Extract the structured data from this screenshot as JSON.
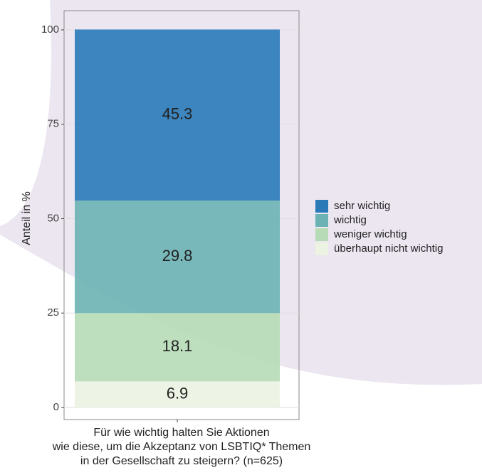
{
  "chart_data": {
    "type": "stacked-bar",
    "categories": [
      null
    ],
    "series": [
      {
        "name": "sehr wichtig",
        "color": "#2a7ab8",
        "values": [
          45.3
        ]
      },
      {
        "name": "wichtig",
        "color": "#6cb2b4",
        "values": [
          29.8
        ]
      },
      {
        "name": "weniger wichtig",
        "color": "#b6dbb6",
        "values": [
          18.1
        ]
      },
      {
        "name": "überhaupt nicht wichtig",
        "color": "#ecf3e2",
        "values": [
          6.9
        ]
      }
    ],
    "ylabel": "Anteil in %",
    "xlabel": [
      "Für wie wichtig halten Sie Aktionen",
      "wie diese, um die Akzeptanz von LSBTIQ* Themen",
      "in der Gesellschaft zu steigern? (n=625)"
    ],
    "ylim": [
      0,
      100
    ],
    "yticks": [
      0,
      25,
      50,
      75,
      100
    ],
    "grid": true,
    "legend": "right"
  }
}
